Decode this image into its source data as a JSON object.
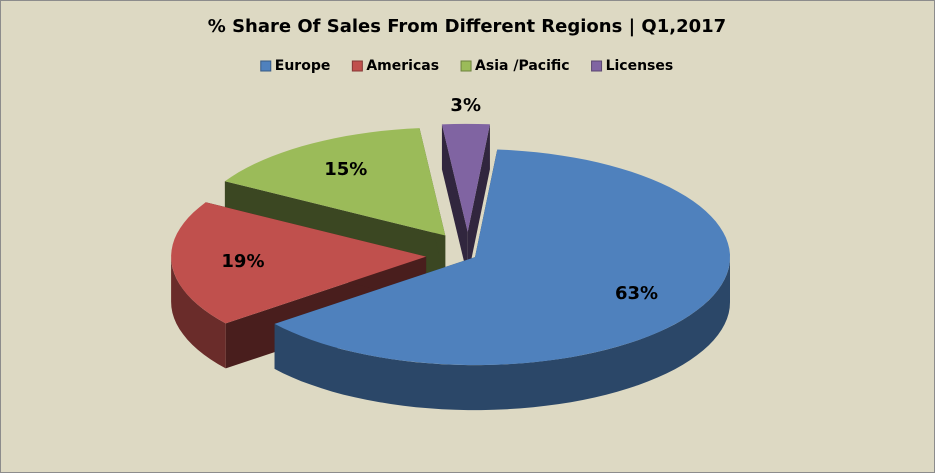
{
  "chart_data": {
    "type": "pie",
    "title": "% Share Of Sales From Different Regions | Q1,2017",
    "categories": [
      "Europe",
      "Americas",
      "Asia /Pacific",
      "Licenses"
    ],
    "values": [
      63,
      19,
      15,
      3
    ],
    "value_labels": [
      "63%",
      "19%",
      "15%",
      "3%"
    ],
    "colors": [
      "#4f81bd",
      "#c0504d",
      "#9bbb59",
      "#8064a2"
    ],
    "legend": "top"
  }
}
